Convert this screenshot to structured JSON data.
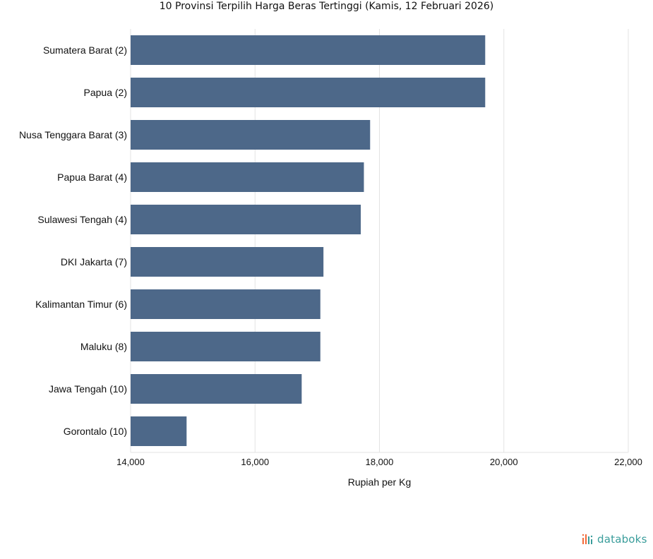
{
  "chart_data": {
    "type": "bar",
    "orientation": "horizontal",
    "title": "10 Provinsi Terpilih Harga Beras Tertinggi (Kamis, 12 Februari 2026)",
    "xlabel": "Rupiah per Kg",
    "ylabel": "",
    "categories": [
      "Sumatera Barat (2)",
      "Papua (2)",
      "Nusa Tenggara Barat (3)",
      "Papua Barat (4)",
      "Sulawesi Tengah (4)",
      "DKI Jakarta (7)",
      "Kalimantan Timur (6)",
      "Maluku (8)",
      "Jawa Tengah (10)",
      "Gorontalo (10)"
    ],
    "values": [
      19700,
      19700,
      17850,
      17750,
      17700,
      17100,
      17050,
      17050,
      16750,
      14900
    ],
    "xlim": [
      14000,
      22000
    ],
    "xticks": [
      14000,
      16000,
      18000,
      20000,
      22000
    ],
    "xtick_labels": [
      "14,000",
      "16,000",
      "18,000",
      "20,000",
      "22,000"
    ],
    "grid": true,
    "bar_color": "#4d6889",
    "grid_color": "#e3e3e3"
  },
  "brand": {
    "name": "databoks",
    "color": "#3a9d9b",
    "accent": "#f26b3a"
  }
}
